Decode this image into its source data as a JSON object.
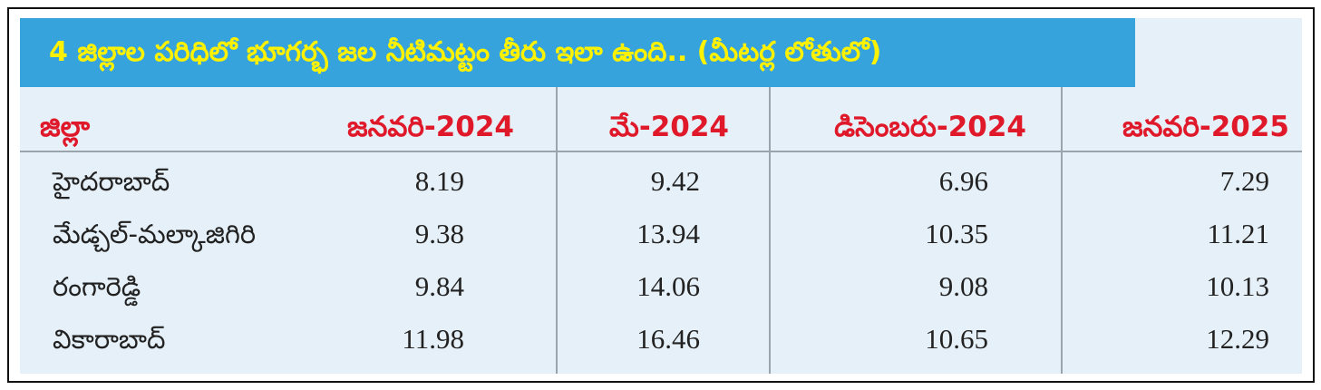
{
  "title": "4 జిల్లాల పరిధిలో భూగర్భ జల నీటిమట్టం తీరు ఇలా ఉంది.. (మీటర్ల లోతులో)",
  "table": {
    "header": [
      "జిల్లా",
      "జనవరి-2024",
      "మే-2024",
      "డిసెంబరు-2024",
      "జనవరి-2025"
    ],
    "rows": [
      [
        "హైదరాబాద్",
        "8.19",
        "9.42",
        "6.96",
        "7.29"
      ],
      [
        "మేడ్చల్-మల్కాజిగిరి",
        "9.38",
        "13.94",
        "10.35",
        "11.21"
      ],
      [
        "రంగారెడ్డి",
        "9.84",
        "14.06",
        "9.08",
        "10.13"
      ],
      [
        "వికారాబాద్",
        "11.98",
        "16.46",
        "10.65",
        "12.29"
      ]
    ]
  }
}
